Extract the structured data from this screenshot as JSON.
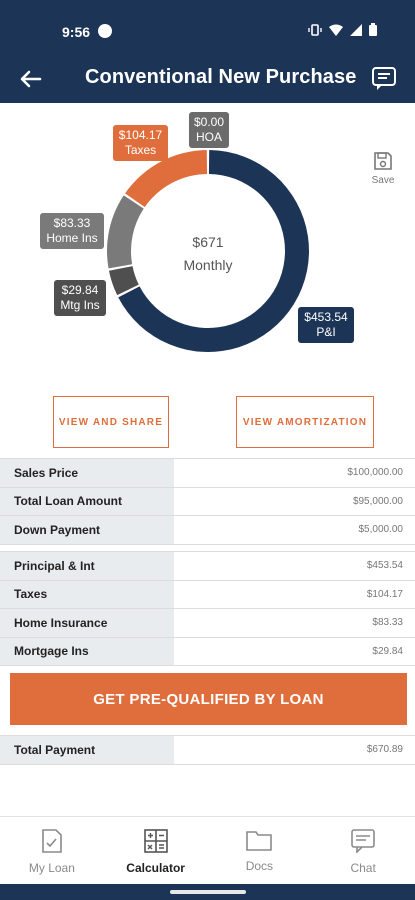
{
  "status_bar": {
    "time": "9:56"
  },
  "header": {
    "title": "Conventional New Purchase"
  },
  "chart_data": {
    "type": "pie",
    "title": "",
    "center_amount": "$671",
    "center_label": "Monthly",
    "slices": [
      {
        "name": "P&I",
        "value": 453.54,
        "label": "$453.54",
        "color": "#1c3557"
      },
      {
        "name": "Mtg Ins",
        "value": 29.84,
        "label": "$29.84",
        "color": "#4f4f4f"
      },
      {
        "name": "Home Ins",
        "value": 83.33,
        "label": "$83.33",
        "color": "#7a7a7a"
      },
      {
        "name": "Taxes",
        "value": 104.17,
        "label": "$104.17",
        "color": "#e06e3c"
      },
      {
        "name": "HOA",
        "value": 0.0,
        "label": "$0.00",
        "color": "#6b6b6b"
      }
    ]
  },
  "tags": {
    "taxes_amount": "$104.17",
    "taxes_label": "Taxes",
    "hoa_amount": "$0.00",
    "hoa_label": "HOA",
    "homeins_amount": "$83.33",
    "homeins_label": "Home Ins",
    "mtgins_amount": "$29.84",
    "mtgins_label": "Mtg Ins",
    "pi_amount": "$453.54",
    "pi_label": "P&I"
  },
  "save": {
    "label": "Save",
    "icon": "save-icon"
  },
  "actions": {
    "share": "VIEW AND SHARE",
    "amortization": "VIEW AMORTIZATION"
  },
  "loan_table": [
    {
      "label": "Sales Price",
      "value": "$100,000.00"
    },
    {
      "label": "Total Loan Amount",
      "value": "$95,000.00"
    },
    {
      "label": "Down Payment",
      "value": "$5,000.00"
    }
  ],
  "payment_table": [
    {
      "label": "Principal & Int",
      "value": "$453.54"
    },
    {
      "label": "Taxes",
      "value": "$104.17"
    },
    {
      "label": "Home Insurance",
      "value": "$83.33"
    },
    {
      "label": "Mortgage Ins",
      "value": "$29.84"
    }
  ],
  "cta": {
    "label": "GET PRE-QUALIFIED BY LOAN"
  },
  "total": {
    "label": "Total Payment",
    "value": "$670.89"
  },
  "nav": [
    {
      "label": "My Loan",
      "icon": "document-check-icon"
    },
    {
      "label": "Calculator",
      "icon": "calculator-icon"
    },
    {
      "label": "Docs",
      "icon": "folder-icon"
    },
    {
      "label": "Chat",
      "icon": "chat-icon"
    }
  ],
  "colors": {
    "navy": "#1c3557",
    "orange": "#e06e3c",
    "label_bg": "#e9ecef"
  }
}
